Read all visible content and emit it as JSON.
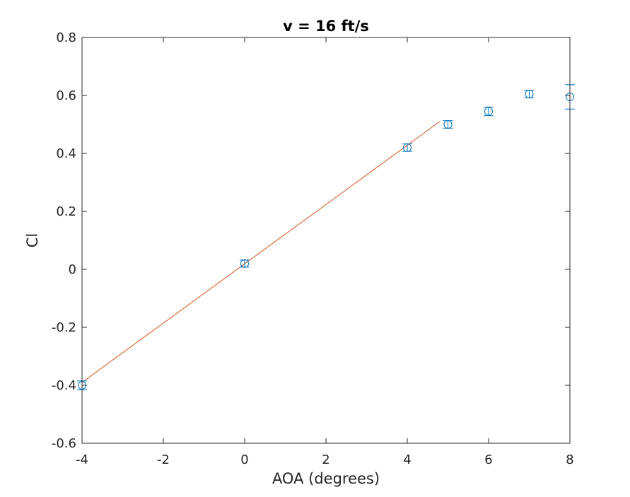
{
  "chart_data": {
    "type": "scatter",
    "title": "v = 16 ft/s",
    "xlabel": "AOA (degrees)",
    "ylabel": "Cl",
    "xlim": [
      -4,
      8
    ],
    "ylim": [
      -0.6,
      0.8
    ],
    "xticks": [
      -4,
      -2,
      0,
      2,
      4,
      6,
      8
    ],
    "yticks": [
      -0.6,
      -0.4,
      -0.2,
      0,
      0.2,
      0.4,
      0.6,
      0.8
    ],
    "xtick_labels": [
      "-4",
      "-2",
      "0",
      "2",
      "4",
      "6",
      "8"
    ],
    "ytick_labels": [
      "-0.6",
      "-0.4",
      "-0.2",
      "0",
      "0.2",
      "0.4",
      "0.6",
      "0.8"
    ],
    "grid": false,
    "box": true,
    "series": [
      {
        "kind": "errorbar",
        "marker": "circle",
        "color": "#0072BD",
        "x": [
          -4,
          0,
          4,
          5,
          6,
          7,
          8
        ],
        "y": [
          -0.4,
          0.02,
          0.42,
          0.5,
          0.545,
          0.605,
          0.595
        ],
        "error": [
          0.015,
          0.012,
          0.013,
          0.013,
          0.015,
          0.013,
          0.042
        ]
      },
      {
        "kind": "line",
        "color": "#D95319",
        "x": [
          -4,
          4.8
        ],
        "y": [
          -0.39,
          0.51
        ]
      }
    ]
  }
}
